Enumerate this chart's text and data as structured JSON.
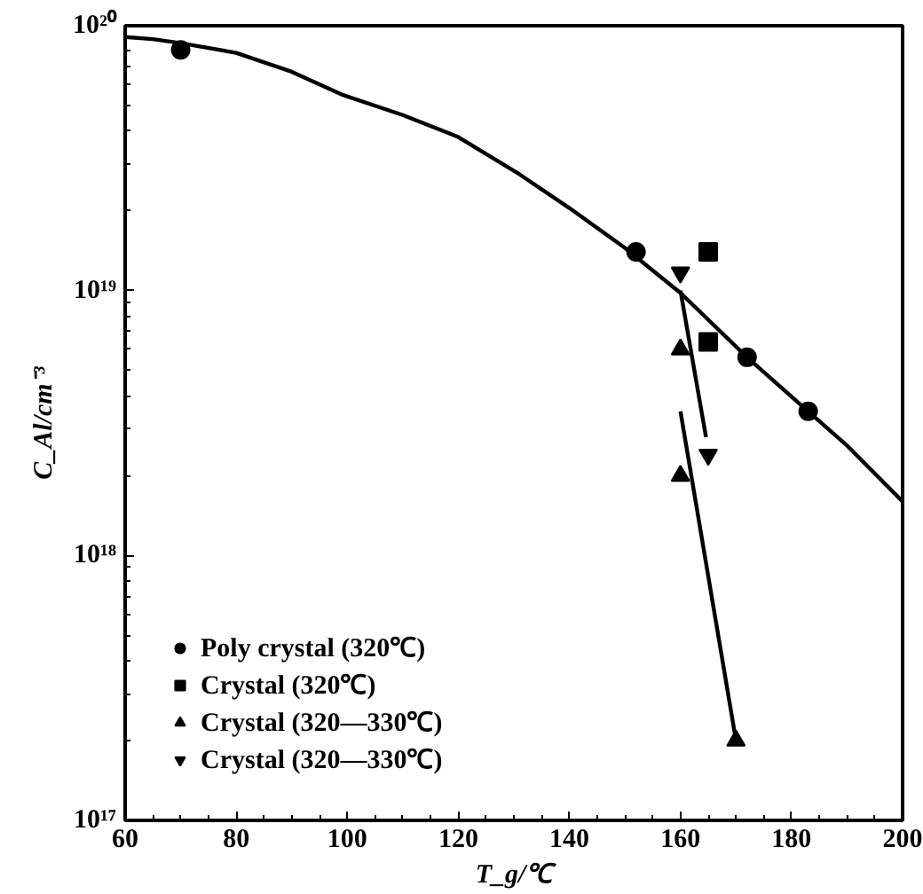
{
  "chart_data": {
    "type": "scatter",
    "xlabel": "T_g/℃",
    "ylabel": "C_Al/cm⁻³",
    "log": "y",
    "xlim": [
      60,
      200
    ],
    "xticks": [
      60,
      80,
      100,
      120,
      140,
      160,
      180,
      200
    ],
    "ylim": [
      1e+17,
      1e+20
    ],
    "yticks": [
      {
        "value": 1e+17,
        "label": "10¹⁷"
      },
      {
        "value": 1e+18,
        "label": "10¹⁸"
      },
      {
        "value": 1e+19,
        "label": "10¹⁹"
      },
      {
        "value": 1e+20,
        "label": "10²⁰"
      }
    ],
    "grid": false,
    "legend": "bottom left",
    "series": [
      {
        "name": "Poly crystal (320℃)",
        "type": "scatter",
        "marker": "circle",
        "color": "#000000",
        "x": [
          70,
          152,
          172,
          183
        ],
        "values": [
          8.1e+19,
          1.4e+19,
          5.6e+18,
          3.5e+18
        ]
      },
      {
        "name": "Crystal (320℃)",
        "type": "scatter",
        "marker": "square",
        "color": "#000000",
        "x": [
          165,
          165
        ],
        "values": [
          1.4e+19,
          6.4e+18
        ]
      },
      {
        "name": "Crystal (320—330℃)",
        "type": "scatter",
        "color": "#000000",
        "marker": "triangle",
        "x": [
          160,
          160,
          170
        ],
        "values": [
          6e+18,
          2e+18,
          2e+17
        ]
      },
      {
        "name": "Crystal (320—330℃)",
        "type": "scatter",
        "color": "#000000",
        "x": [
          160,
          165
        ],
        "values": [
          1.17e+19,
          2.4e+18
        ]
      },
      {
        "type": "line",
        "line_style": "solid",
        "color": "#000000",
        "x": [
          60,
          65,
          70,
          80,
          90,
          99,
          110,
          120,
          131,
          140,
          150,
          160,
          172,
          183,
          190,
          200
        ],
        "values": [
          9.06e+19,
          8.9e+19,
          8.6e+19,
          7.9e+19,
          6.7e+19,
          5.5e+19,
          4.6e+19,
          3.8e+19,
          2.75e+19,
          2.05e+19,
          1.45e+19,
          9.8e+18,
          5.6e+18,
          3.5e+18,
          2.6e+18,
          1.6e+18
        ]
      },
      {
        "type": "line",
        "line_style": "solid",
        "color": "#000000",
        "x": [
          160,
          164.6
        ],
        "values": [
          1e+19,
          2.8e+18
        ]
      },
      {
        "type": "line",
        "line_style": "solid",
        "color": "#000000",
        "x": [
          160,
          170
        ],
        "values": [
          3.5e+18,
          2e+17
        ]
      }
    ]
  }
}
